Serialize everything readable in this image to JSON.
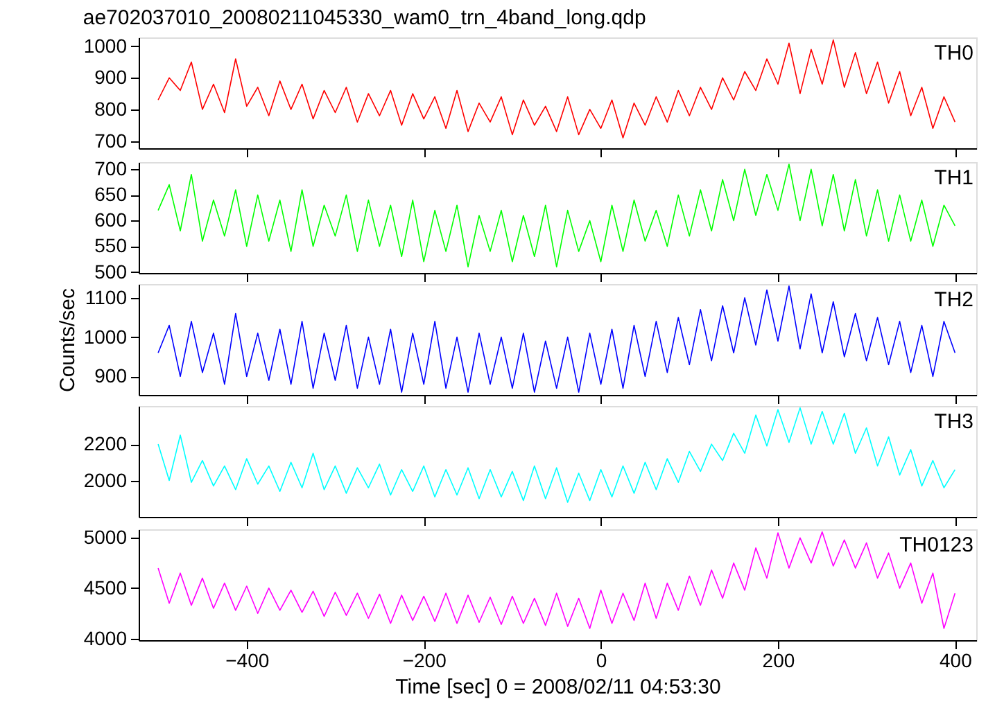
{
  "chart_data": [
    {
      "type": "line",
      "title": "ae702037010_20080211045330_wam0_trn_4band_long.qdp",
      "tick_labels": "y",
      "xlim": [
        -522,
        424
      ],
      "xticks": [
        -400,
        -200,
        0,
        200,
        400
      ],
      "ylim": [
        677,
        1028
      ],
      "yticks": [
        700,
        800,
        900,
        1000
      ],
      "x": [
        -500,
        -487.5,
        -475,
        -462.5,
        -450,
        -437.5,
        -425,
        -412.5,
        -400,
        -387.5,
        -375,
        -362.5,
        -350,
        -337.5,
        -325,
        -312.5,
        -300,
        -287.5,
        -275,
        -262.5,
        -250,
        -237.5,
        -225,
        -212.5,
        -200,
        -187.5,
        -175,
        -162.5,
        -150,
        -137.5,
        -125,
        -112.5,
        -100,
        -87.5,
        -75,
        -62.5,
        -50,
        -37.5,
        -25,
        -12.5,
        0,
        12.5,
        25,
        37.5,
        50,
        62.5,
        75,
        87.5,
        100,
        112.5,
        125,
        137.5,
        150,
        162.5,
        175,
        187.5,
        200,
        212.5,
        225,
        237.5,
        250,
        262.5,
        275,
        287.5,
        300,
        312.5,
        325,
        337.5,
        350,
        362.5,
        375,
        387.5,
        400
      ],
      "series": [
        {
          "name": "TH0",
          "color": "#ff0000",
          "values": [
            830,
            900,
            860,
            950,
            800,
            880,
            790,
            960,
            810,
            870,
            780,
            890,
            800,
            880,
            770,
            860,
            790,
            870,
            760,
            850,
            780,
            860,
            750,
            850,
            770,
            840,
            740,
            860,
            730,
            820,
            760,
            840,
            720,
            830,
            750,
            810,
            730,
            840,
            720,
            800,
            740,
            830,
            710,
            820,
            750,
            840,
            760,
            860,
            780,
            870,
            800,
            900,
            830,
            920,
            860,
            960,
            880,
            1010,
            850,
            990,
            880,
            1020,
            870,
            980,
            850,
            950,
            820,
            920,
            780,
            870,
            740,
            840,
            760
          ]
        }
      ]
    },
    {
      "type": "line",
      "tick_labels": "y",
      "xlim": [
        -522,
        424
      ],
      "xticks": [
        -400,
        -200,
        0,
        200,
        400
      ],
      "ylim": [
        498,
        714
      ],
      "yticks": [
        500,
        550,
        600,
        650,
        700
      ],
      "x": [
        -500,
        -487.5,
        -475,
        -462.5,
        -450,
        -437.5,
        -425,
        -412.5,
        -400,
        -387.5,
        -375,
        -362.5,
        -350,
        -337.5,
        -325,
        -312.5,
        -300,
        -287.5,
        -275,
        -262.5,
        -250,
        -237.5,
        -225,
        -212.5,
        -200,
        -187.5,
        -175,
        -162.5,
        -150,
        -137.5,
        -125,
        -112.5,
        -100,
        -87.5,
        -75,
        -62.5,
        -50,
        -37.5,
        -25,
        -12.5,
        0,
        12.5,
        25,
        37.5,
        50,
        62.5,
        75,
        87.5,
        100,
        112.5,
        125,
        137.5,
        150,
        162.5,
        175,
        187.5,
        200,
        212.5,
        225,
        237.5,
        250,
        262.5,
        275,
        287.5,
        300,
        312.5,
        325,
        337.5,
        350,
        362.5,
        375,
        387.5,
        400
      ],
      "series": [
        {
          "name": "TH1",
          "color": "#00ff00",
          "values": [
            620,
            670,
            580,
            690,
            560,
            640,
            570,
            660,
            550,
            650,
            560,
            640,
            540,
            660,
            550,
            630,
            570,
            650,
            540,
            640,
            550,
            630,
            530,
            640,
            520,
            620,
            540,
            630,
            510,
            610,
            540,
            620,
            520,
            610,
            530,
            630,
            510,
            620,
            540,
            600,
            520,
            630,
            540,
            640,
            560,
            620,
            550,
            650,
            570,
            660,
            580,
            680,
            600,
            700,
            610,
            690,
            620,
            710,
            600,
            700,
            590,
            690,
            580,
            680,
            570,
            660,
            560,
            650,
            560,
            640,
            550,
            630,
            590
          ]
        }
      ]
    },
    {
      "type": "line",
      "tick_labels": "y",
      "ylabel": "Counts/sec",
      "xlim": [
        -522,
        424
      ],
      "xticks": [
        -400,
        -200,
        0,
        200,
        400
      ],
      "ylim": [
        853,
        1135
      ],
      "yticks": [
        900,
        1000,
        1100
      ],
      "x": [
        -500,
        -487.5,
        -475,
        -462.5,
        -450,
        -437.5,
        -425,
        -412.5,
        -400,
        -387.5,
        -375,
        -362.5,
        -350,
        -337.5,
        -325,
        -312.5,
        -300,
        -287.5,
        -275,
        -262.5,
        -250,
        -237.5,
        -225,
        -212.5,
        -200,
        -187.5,
        -175,
        -162.5,
        -150,
        -137.5,
        -125,
        -112.5,
        -100,
        -87.5,
        -75,
        -62.5,
        -50,
        -37.5,
        -25,
        -12.5,
        0,
        12.5,
        25,
        37.5,
        50,
        62.5,
        75,
        87.5,
        100,
        112.5,
        125,
        137.5,
        150,
        162.5,
        175,
        187.5,
        200,
        212.5,
        225,
        237.5,
        250,
        262.5,
        275,
        287.5,
        300,
        312.5,
        325,
        337.5,
        350,
        362.5,
        375,
        387.5,
        400
      ],
      "series": [
        {
          "name": "TH2",
          "color": "#0000ff",
          "values": [
            960,
            1030,
            900,
            1040,
            910,
            1010,
            880,
            1060,
            900,
            1010,
            890,
            1020,
            880,
            1040,
            870,
            1010,
            890,
            1030,
            870,
            1000,
            880,
            1020,
            860,
            1010,
            880,
            1040,
            870,
            1000,
            860,
            1010,
            880,
            1000,
            870,
            1010,
            860,
            990,
            870,
            1000,
            860,
            1010,
            880,
            1020,
            870,
            1030,
            900,
            1040,
            910,
            1050,
            930,
            1070,
            940,
            1080,
            960,
            1100,
            980,
            1120,
            990,
            1130,
            970,
            1110,
            960,
            1090,
            950,
            1060,
            940,
            1050,
            930,
            1040,
            910,
            1030,
            900,
            1040,
            960
          ]
        }
      ]
    },
    {
      "type": "line",
      "tick_labels": "y",
      "xlim": [
        -522,
        424
      ],
      "xticks": [
        -400,
        -200,
        0,
        200,
        400
      ],
      "ylim": [
        1800,
        2410
      ],
      "yticks": [
        2000,
        2200
      ],
      "x": [
        -500,
        -487.5,
        -475,
        -462.5,
        -450,
        -437.5,
        -425,
        -412.5,
        -400,
        -387.5,
        -375,
        -362.5,
        -350,
        -337.5,
        -325,
        -312.5,
        -300,
        -287.5,
        -275,
        -262.5,
        -250,
        -237.5,
        -225,
        -212.5,
        -200,
        -187.5,
        -175,
        -162.5,
        -150,
        -137.5,
        -125,
        -112.5,
        -100,
        -87.5,
        -75,
        -62.5,
        -50,
        -37.5,
        -25,
        -12.5,
        0,
        12.5,
        25,
        37.5,
        50,
        62.5,
        75,
        87.5,
        100,
        112.5,
        125,
        137.5,
        150,
        162.5,
        175,
        187.5,
        200,
        212.5,
        225,
        237.5,
        250,
        262.5,
        275,
        287.5,
        300,
        312.5,
        325,
        337.5,
        350,
        362.5,
        375,
        387.5,
        400
      ],
      "series": [
        {
          "name": "TH3",
          "color": "#00ffff",
          "values": [
            2200,
            2000,
            2250,
            1990,
            2110,
            1970,
            2080,
            1950,
            2120,
            1980,
            2080,
            1940,
            2100,
            1960,
            2150,
            1950,
            2080,
            1930,
            2070,
            1960,
            2090,
            1920,
            2060,
            1940,
            2080,
            1910,
            2060,
            1920,
            2070,
            1900,
            2060,
            1910,
            2050,
            1890,
            2080,
            1900,
            2070,
            1880,
            2040,
            1890,
            2060,
            1910,
            2080,
            1930,
            2100,
            1950,
            2120,
            1990,
            2160,
            2050,
            2200,
            2110,
            2260,
            2150,
            2360,
            2190,
            2390,
            2210,
            2400,
            2200,
            2380,
            2200,
            2370,
            2150,
            2290,
            2080,
            2240,
            2030,
            2170,
            1970,
            2110,
            1960,
            2060
          ]
        }
      ]
    },
    {
      "type": "line",
      "xlabel": "Time [sec] 0 = 2008/02/11 04:53:30",
      "xlim": [
        -522,
        424
      ],
      "xticks": [
        -400,
        -200,
        0,
        200,
        400
      ],
      "ylim": [
        3983,
        5085
      ],
      "yticks": [
        4000,
        4500,
        5000
      ],
      "x": [
        -500,
        -487.5,
        -475,
        -462.5,
        -450,
        -437.5,
        -425,
        -412.5,
        -400,
        -387.5,
        -375,
        -362.5,
        -350,
        -337.5,
        -325,
        -312.5,
        -300,
        -287.5,
        -275,
        -262.5,
        -250,
        -237.5,
        -225,
        -212.5,
        -200,
        -187.5,
        -175,
        -162.5,
        -150,
        -137.5,
        -125,
        -112.5,
        -100,
        -87.5,
        -75,
        -62.5,
        -50,
        -37.5,
        -25,
        -12.5,
        0,
        12.5,
        25,
        37.5,
        50,
        62.5,
        75,
        87.5,
        100,
        112.5,
        125,
        137.5,
        150,
        162.5,
        175,
        187.5,
        200,
        212.5,
        225,
        237.5,
        250,
        262.5,
        275,
        287.5,
        300,
        312.5,
        325,
        337.5,
        350,
        362.5,
        375,
        387.5,
        400
      ],
      "series": [
        {
          "name": "TH0123",
          "color": "#ff00ff",
          "values": [
            4700,
            4350,
            4650,
            4330,
            4600,
            4300,
            4550,
            4280,
            4520,
            4250,
            4500,
            4280,
            4480,
            4260,
            4470,
            4220,
            4460,
            4230,
            4450,
            4200,
            4440,
            4150,
            4430,
            4180,
            4420,
            4170,
            4450,
            4150,
            4430,
            4160,
            4410,
            4140,
            4420,
            4150,
            4400,
            4130,
            4450,
            4120,
            4400,
            4100,
            4480,
            4150,
            4450,
            4180,
            4550,
            4200,
            4550,
            4280,
            4620,
            4330,
            4680,
            4400,
            4750,
            4480,
            4900,
            4600,
            5050,
            4700,
            5000,
            4750,
            5060,
            4720,
            4980,
            4700,
            4950,
            4600,
            4850,
            4500,
            4750,
            4350,
            4650,
            4100,
            4450
          ]
        }
      ]
    }
  ]
}
